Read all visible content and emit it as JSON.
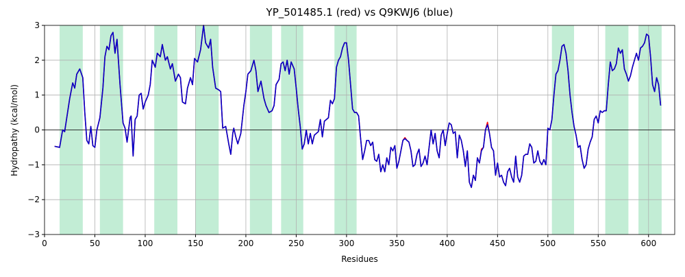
{
  "chart_data": {
    "type": "line",
    "title": "YP_501485.1 (red) vs Q9KWJ6 (blue)",
    "xlabel": "Residues",
    "ylabel": "Hydropathy (kcal/mol)",
    "xlim": [
      0,
      626
    ],
    "ylim": [
      -3,
      3
    ],
    "xticks": [
      0,
      50,
      100,
      150,
      200,
      250,
      300,
      350,
      400,
      450,
      500,
      550,
      600
    ],
    "yticks": [
      {
        "value": -3,
        "label": "−3"
      },
      {
        "value": -2,
        "label": "−2"
      },
      {
        "value": -1,
        "label": "−1"
      },
      0,
      1,
      2,
      3
    ],
    "grid": true,
    "hline": 0,
    "region_color": "#c2edd5",
    "regions": [
      [
        15,
        38
      ],
      [
        55,
        78
      ],
      [
        109,
        132
      ],
      [
        150,
        173
      ],
      [
        204,
        226
      ],
      [
        235,
        257
      ],
      [
        288,
        310
      ],
      [
        504,
        526
      ],
      [
        557,
        580
      ],
      [
        590,
        613
      ]
    ],
    "x": [
      10,
      15,
      18,
      20,
      25,
      28,
      30,
      32,
      35,
      38,
      40,
      42,
      44,
      46,
      48,
      50,
      52,
      55,
      58,
      60,
      62,
      64,
      66,
      68,
      70,
      72,
      75,
      78,
      80,
      82,
      85,
      86,
      88,
      90,
      92,
      94,
      96,
      98,
      100,
      103,
      105,
      107,
      110,
      112,
      115,
      117,
      120,
      122,
      125,
      127,
      130,
      133,
      135,
      137,
      140,
      142,
      145,
      147,
      149,
      152,
      155,
      158,
      160,
      163,
      165,
      167,
      170,
      173,
      175,
      177,
      180,
      183,
      185,
      187,
      188,
      190,
      192,
      195,
      198,
      200,
      202,
      205,
      208,
      210,
      212,
      215,
      218,
      220,
      223,
      226,
      228,
      230,
      233,
      235,
      237,
      239,
      241,
      243,
      245,
      248,
      250,
      252,
      254,
      256,
      258,
      260,
      262,
      264,
      266,
      268,
      270,
      272,
      274,
      276,
      278,
      280,
      282,
      284,
      286,
      288,
      290,
      292,
      294,
      296,
      298,
      300,
      302,
      304,
      306,
      308,
      310,
      312,
      314,
      316,
      318,
      320,
      322,
      324,
      326,
      328,
      330,
      332,
      334,
      336,
      338,
      340,
      342,
      344,
      346,
      348,
      350,
      352,
      354,
      356,
      358,
      360,
      362,
      364,
      366,
      368,
      370,
      372,
      374,
      376,
      378,
      380,
      382,
      384,
      386,
      388,
      390,
      392,
      394,
      396,
      398,
      400,
      402,
      404,
      406,
      408,
      410,
      412,
      414,
      416,
      418,
      420,
      422,
      424,
      426,
      428,
      430,
      432,
      434,
      436,
      438,
      440,
      442,
      444,
      446,
      448,
      450,
      452,
      454,
      456,
      458,
      460,
      462,
      464,
      466,
      468,
      470,
      472,
      474,
      476,
      478,
      480,
      482,
      484,
      486,
      488,
      490,
      492,
      494,
      496,
      498,
      500,
      502,
      504,
      506,
      508,
      510,
      512,
      514,
      516,
      518,
      520,
      522,
      524,
      526,
      528,
      530,
      532,
      534,
      536,
      538,
      540,
      542,
      544,
      546,
      548,
      550,
      552,
      554,
      556,
      558,
      560,
      562,
      564,
      566,
      568,
      570,
      572,
      574,
      576,
      578,
      580,
      582,
      584,
      586,
      588,
      590,
      592,
      594,
      596,
      598,
      600,
      602,
      604,
      606,
      608,
      610,
      612
    ],
    "series": [
      {
        "name": "YP_501485.1",
        "color": "#ff0000",
        "values": [
          -0.47,
          -0.5,
          0.0,
          -0.05,
          0.9,
          1.35,
          1.2,
          1.6,
          1.75,
          1.5,
          0.5,
          -0.3,
          -0.4,
          0.1,
          -0.45,
          -0.5,
          0.0,
          0.35,
          1.2,
          2.1,
          2.4,
          2.3,
          2.7,
          2.8,
          2.2,
          2.6,
          1.3,
          0.2,
          0.05,
          -0.35,
          0.35,
          0.4,
          -0.75,
          0.3,
          0.4,
          1.0,
          1.05,
          0.6,
          0.8,
          1.0,
          1.3,
          2.0,
          1.8,
          2.2,
          2.1,
          2.45,
          2.0,
          2.1,
          1.75,
          1.9,
          1.4,
          1.6,
          1.5,
          0.8,
          0.75,
          1.2,
          1.5,
          1.3,
          2.05,
          1.95,
          2.3,
          3.0,
          2.5,
          2.35,
          2.6,
          1.8,
          1.2,
          1.15,
          1.1,
          0.05,
          0.1,
          -0.4,
          -0.7,
          -0.1,
          0.05,
          -0.2,
          -0.4,
          -0.1,
          0.7,
          1.1,
          1.6,
          1.7,
          2.0,
          1.7,
          1.1,
          1.4,
          0.9,
          0.7,
          0.5,
          0.55,
          0.7,
          1.3,
          1.45,
          1.9,
          1.95,
          1.7,
          2.0,
          1.6,
          1.95,
          1.75,
          1.2,
          0.6,
          0.1,
          -0.55,
          -0.4,
          0.0,
          -0.4,
          -0.1,
          -0.4,
          -0.15,
          -0.1,
          -0.05,
          0.3,
          -0.2,
          0.25,
          0.3,
          0.35,
          0.85,
          0.75,
          0.9,
          1.8,
          2.0,
          2.1,
          2.35,
          2.5,
          2.5,
          2.0,
          1.3,
          0.6,
          0.5,
          0.5,
          0.4,
          -0.25,
          -0.85,
          -0.6,
          -0.3,
          -0.3,
          -0.45,
          -0.35,
          -0.85,
          -0.9,
          -0.7,
          -1.2,
          -1.0,
          -1.2,
          -0.8,
          -1.0,
          -0.5,
          -0.6,
          -0.45,
          -1.1,
          -0.9,
          -0.6,
          -0.3,
          -0.22,
          -0.3,
          -0.35,
          -0.6,
          -1.05,
          -1.0,
          -0.7,
          -0.55,
          -1.05,
          -0.95,
          -0.75,
          -1.0,
          -0.5,
          0.0,
          -0.4,
          -0.1,
          -0.6,
          -0.8,
          -0.15,
          0.0,
          -0.45,
          -0.1,
          0.2,
          0.15,
          -0.1,
          -0.05,
          -0.8,
          -0.15,
          -0.3,
          -0.6,
          -1.05,
          -0.6,
          -1.5,
          -1.65,
          -1.3,
          -1.45,
          -0.8,
          -0.95,
          -0.55,
          -0.5,
          0.0,
          0.22,
          -0.1,
          -0.5,
          -0.6,
          -1.3,
          -0.95,
          -1.35,
          -1.3,
          -1.5,
          -1.6,
          -1.2,
          -1.1,
          -1.35,
          -1.5,
          -0.75,
          -1.35,
          -1.5,
          -1.3,
          -0.75,
          -0.7,
          -0.7,
          -0.4,
          -0.5,
          -0.95,
          -0.9,
          -0.6,
          -0.9,
          -1.0,
          -0.85,
          -1.0,
          0.05,
          0.0,
          0.3,
          1.0,
          1.6,
          1.7,
          2.0,
          2.4,
          2.45,
          2.2,
          1.7,
          1.0,
          0.5,
          0.1,
          -0.15,
          -0.5,
          -0.45,
          -0.85,
          -1.1,
          -1.0,
          -0.55,
          -0.35,
          -0.2,
          0.3,
          0.4,
          0.2,
          0.55,
          0.5,
          0.55,
          0.55,
          1.3,
          1.95,
          1.7,
          1.75,
          1.9,
          2.35,
          2.2,
          2.3,
          1.75,
          1.6,
          1.4,
          1.55,
          1.8,
          2.0,
          2.2,
          2.0,
          2.35,
          2.4,
          2.5,
          2.75,
          2.7,
          2.1,
          1.3,
          1.1,
          1.5,
          1.3,
          0.7
        ]
      },
      {
        "name": "Q9KWJ6",
        "color": "#0000cc",
        "values": [
          -0.47,
          -0.5,
          0.0,
          -0.05,
          0.9,
          1.35,
          1.2,
          1.6,
          1.75,
          1.5,
          0.5,
          -0.3,
          -0.4,
          0.1,
          -0.45,
          -0.5,
          0.0,
          0.35,
          1.2,
          2.1,
          2.4,
          2.3,
          2.7,
          2.8,
          2.2,
          2.6,
          1.3,
          0.2,
          0.05,
          -0.35,
          0.35,
          0.4,
          -0.75,
          0.3,
          0.4,
          1.0,
          1.05,
          0.6,
          0.8,
          1.0,
          1.3,
          2.0,
          1.8,
          2.2,
          2.1,
          2.45,
          2.0,
          2.1,
          1.75,
          1.9,
          1.4,
          1.6,
          1.5,
          0.8,
          0.75,
          1.2,
          1.5,
          1.3,
          2.05,
          1.95,
          2.3,
          3.0,
          2.5,
          2.35,
          2.6,
          1.8,
          1.2,
          1.15,
          1.1,
          0.05,
          0.1,
          -0.4,
          -0.7,
          -0.1,
          0.05,
          -0.2,
          -0.4,
          -0.1,
          0.7,
          1.1,
          1.6,
          1.7,
          2.0,
          1.7,
          1.1,
          1.4,
          0.9,
          0.7,
          0.5,
          0.55,
          0.7,
          1.3,
          1.45,
          1.9,
          1.95,
          1.7,
          2.0,
          1.6,
          1.95,
          1.75,
          1.2,
          0.6,
          0.1,
          -0.55,
          -0.4,
          0.0,
          -0.4,
          -0.1,
          -0.4,
          -0.15,
          -0.1,
          -0.05,
          0.3,
          -0.2,
          0.25,
          0.3,
          0.35,
          0.85,
          0.75,
          0.9,
          1.8,
          2.0,
          2.1,
          2.35,
          2.5,
          2.5,
          2.0,
          1.3,
          0.6,
          0.5,
          0.5,
          0.4,
          -0.25,
          -0.85,
          -0.6,
          -0.3,
          -0.3,
          -0.45,
          -0.35,
          -0.85,
          -0.9,
          -0.7,
          -1.2,
          -1.0,
          -1.2,
          -0.8,
          -1.0,
          -0.5,
          -0.6,
          -0.45,
          -1.1,
          -0.9,
          -0.6,
          -0.3,
          -0.25,
          -0.3,
          -0.35,
          -0.6,
          -1.05,
          -1.0,
          -0.7,
          -0.55,
          -1.05,
          -0.95,
          -0.75,
          -1.0,
          -0.5,
          0.0,
          -0.4,
          -0.1,
          -0.6,
          -0.8,
          -0.15,
          0.0,
          -0.45,
          -0.1,
          0.2,
          0.15,
          -0.1,
          -0.05,
          -0.8,
          -0.15,
          -0.3,
          -0.6,
          -1.05,
          -0.6,
          -1.5,
          -1.65,
          -1.3,
          -1.45,
          -0.8,
          -0.95,
          -0.6,
          -0.5,
          0.0,
          0.15,
          -0.1,
          -0.5,
          -0.6,
          -1.3,
          -0.95,
          -1.35,
          -1.3,
          -1.5,
          -1.6,
          -1.2,
          -1.1,
          -1.35,
          -1.5,
          -0.75,
          -1.35,
          -1.5,
          -1.3,
          -0.75,
          -0.7,
          -0.7,
          -0.4,
          -0.5,
          -0.95,
          -0.9,
          -0.6,
          -0.9,
          -1.0,
          -0.85,
          -1.0,
          0.05,
          0.0,
          0.3,
          1.0,
          1.6,
          1.7,
          2.0,
          2.4,
          2.45,
          2.2,
          1.7,
          1.0,
          0.5,
          0.1,
          -0.15,
          -0.5,
          -0.45,
          -0.85,
          -1.1,
          -1.0,
          -0.55,
          -0.35,
          -0.2,
          0.3,
          0.4,
          0.2,
          0.55,
          0.5,
          0.55,
          0.55,
          1.3,
          1.95,
          1.7,
          1.75,
          1.9,
          2.35,
          2.2,
          2.3,
          1.75,
          1.6,
          1.4,
          1.55,
          1.8,
          2.0,
          2.2,
          2.0,
          2.35,
          2.4,
          2.5,
          2.75,
          2.7,
          2.1,
          1.3,
          1.1,
          1.5,
          1.3,
          0.7
        ]
      }
    ]
  }
}
